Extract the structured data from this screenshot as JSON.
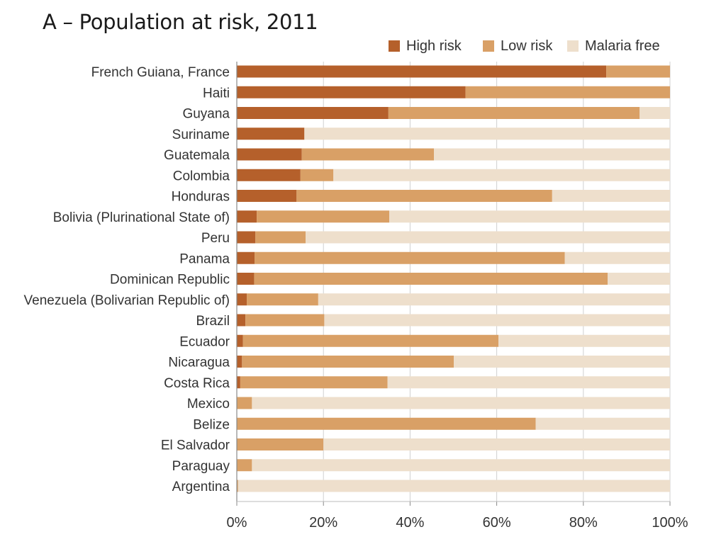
{
  "chart_data": {
    "type": "bar",
    "orientation": "horizontal",
    "stacked": true,
    "title": "A – Population at risk, 2011",
    "xlabel": "",
    "ylabel": "",
    "xlim": [
      0,
      100
    ],
    "x_ticks": [
      "0%",
      "20%",
      "40%",
      "60%",
      "80%",
      "100%"
    ],
    "grid": true,
    "legend_position": "top-right",
    "categories": [
      "French Guiana, France",
      "Haiti",
      "Guyana",
      "Suriname",
      "Guatemala",
      "Colombia",
      "Honduras",
      "Bolivia (Plurinational State of)",
      "Peru",
      "Panama",
      "Dominican Republic",
      "Venezuela (Bolivarian Republic of)",
      "Brazil",
      "Ecuador",
      "Nicaragua",
      "Costa Rica",
      "Mexico",
      "Belize",
      "El Salvador",
      "Paraguay",
      "Argentina"
    ],
    "series": [
      {
        "name": "High risk",
        "color": "#b5602b",
        "values": [
          85.3,
          52.8,
          35.0,
          15.6,
          15.0,
          14.7,
          13.8,
          4.6,
          4.3,
          4.1,
          4.0,
          2.3,
          2.0,
          1.4,
          1.2,
          0.8,
          0.0,
          0.0,
          0.0,
          0.0,
          0.0
        ]
      },
      {
        "name": "Low risk",
        "color": "#d9a066",
        "values": [
          14.7,
          47.2,
          58.0,
          0.0,
          30.5,
          7.6,
          59.0,
          30.6,
          11.6,
          71.6,
          81.6,
          16.5,
          18.2,
          59.0,
          48.9,
          34.0,
          3.5,
          69.0,
          20.0,
          3.5,
          0.3
        ]
      },
      {
        "name": "Malaria free",
        "color": "#eedfcc",
        "values": [
          0.0,
          0.0,
          7.0,
          84.4,
          54.5,
          77.7,
          27.2,
          64.8,
          84.1,
          24.3,
          14.4,
          81.2,
          79.8,
          39.6,
          49.9,
          65.2,
          96.5,
          31.0,
          80.0,
          96.5,
          99.7
        ]
      }
    ]
  }
}
